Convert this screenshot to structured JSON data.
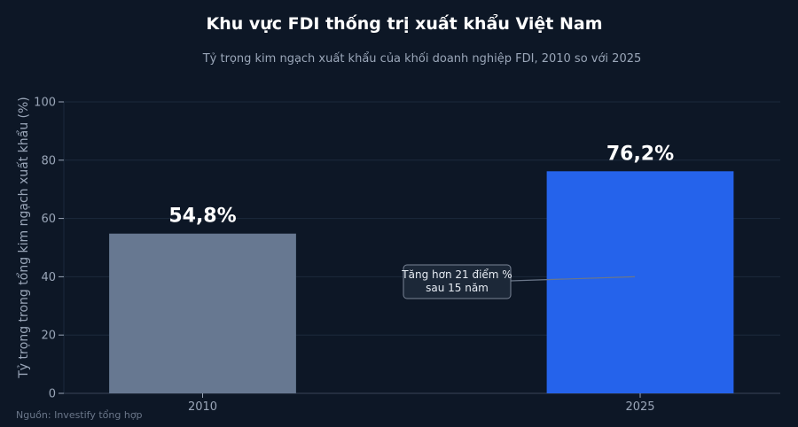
{
  "chart_data": {
    "type": "bar",
    "title": "Khu vực FDI thống trị xuất khẩu Việt Nam",
    "subtitle": "Tỷ trọng kim ngạch xuất khẩu của khối doanh nghiệp FDI, 2010 so với 2025",
    "ylabel": "Tỷ trọng trong tổng kim ngạch xuất khẩu (%)",
    "xlabel": "",
    "categories": [
      "2010",
      "2025"
    ],
    "values": [
      54.8,
      76.2
    ],
    "value_labels": [
      "54,8%",
      "76,2%"
    ],
    "colors": [
      "#677891",
      "#2563eb"
    ],
    "ylim": [
      0,
      100
    ],
    "yticks": [
      0,
      20,
      40,
      60,
      80,
      100
    ],
    "grid": true,
    "annotation": {
      "lines": [
        "Tăng hơn 21 điểm %",
        "sau 15 năm"
      ],
      "points_to": {
        "x": "2025",
        "y": 40
      }
    },
    "source": "Nguồn: Investify tổng hợp"
  }
}
